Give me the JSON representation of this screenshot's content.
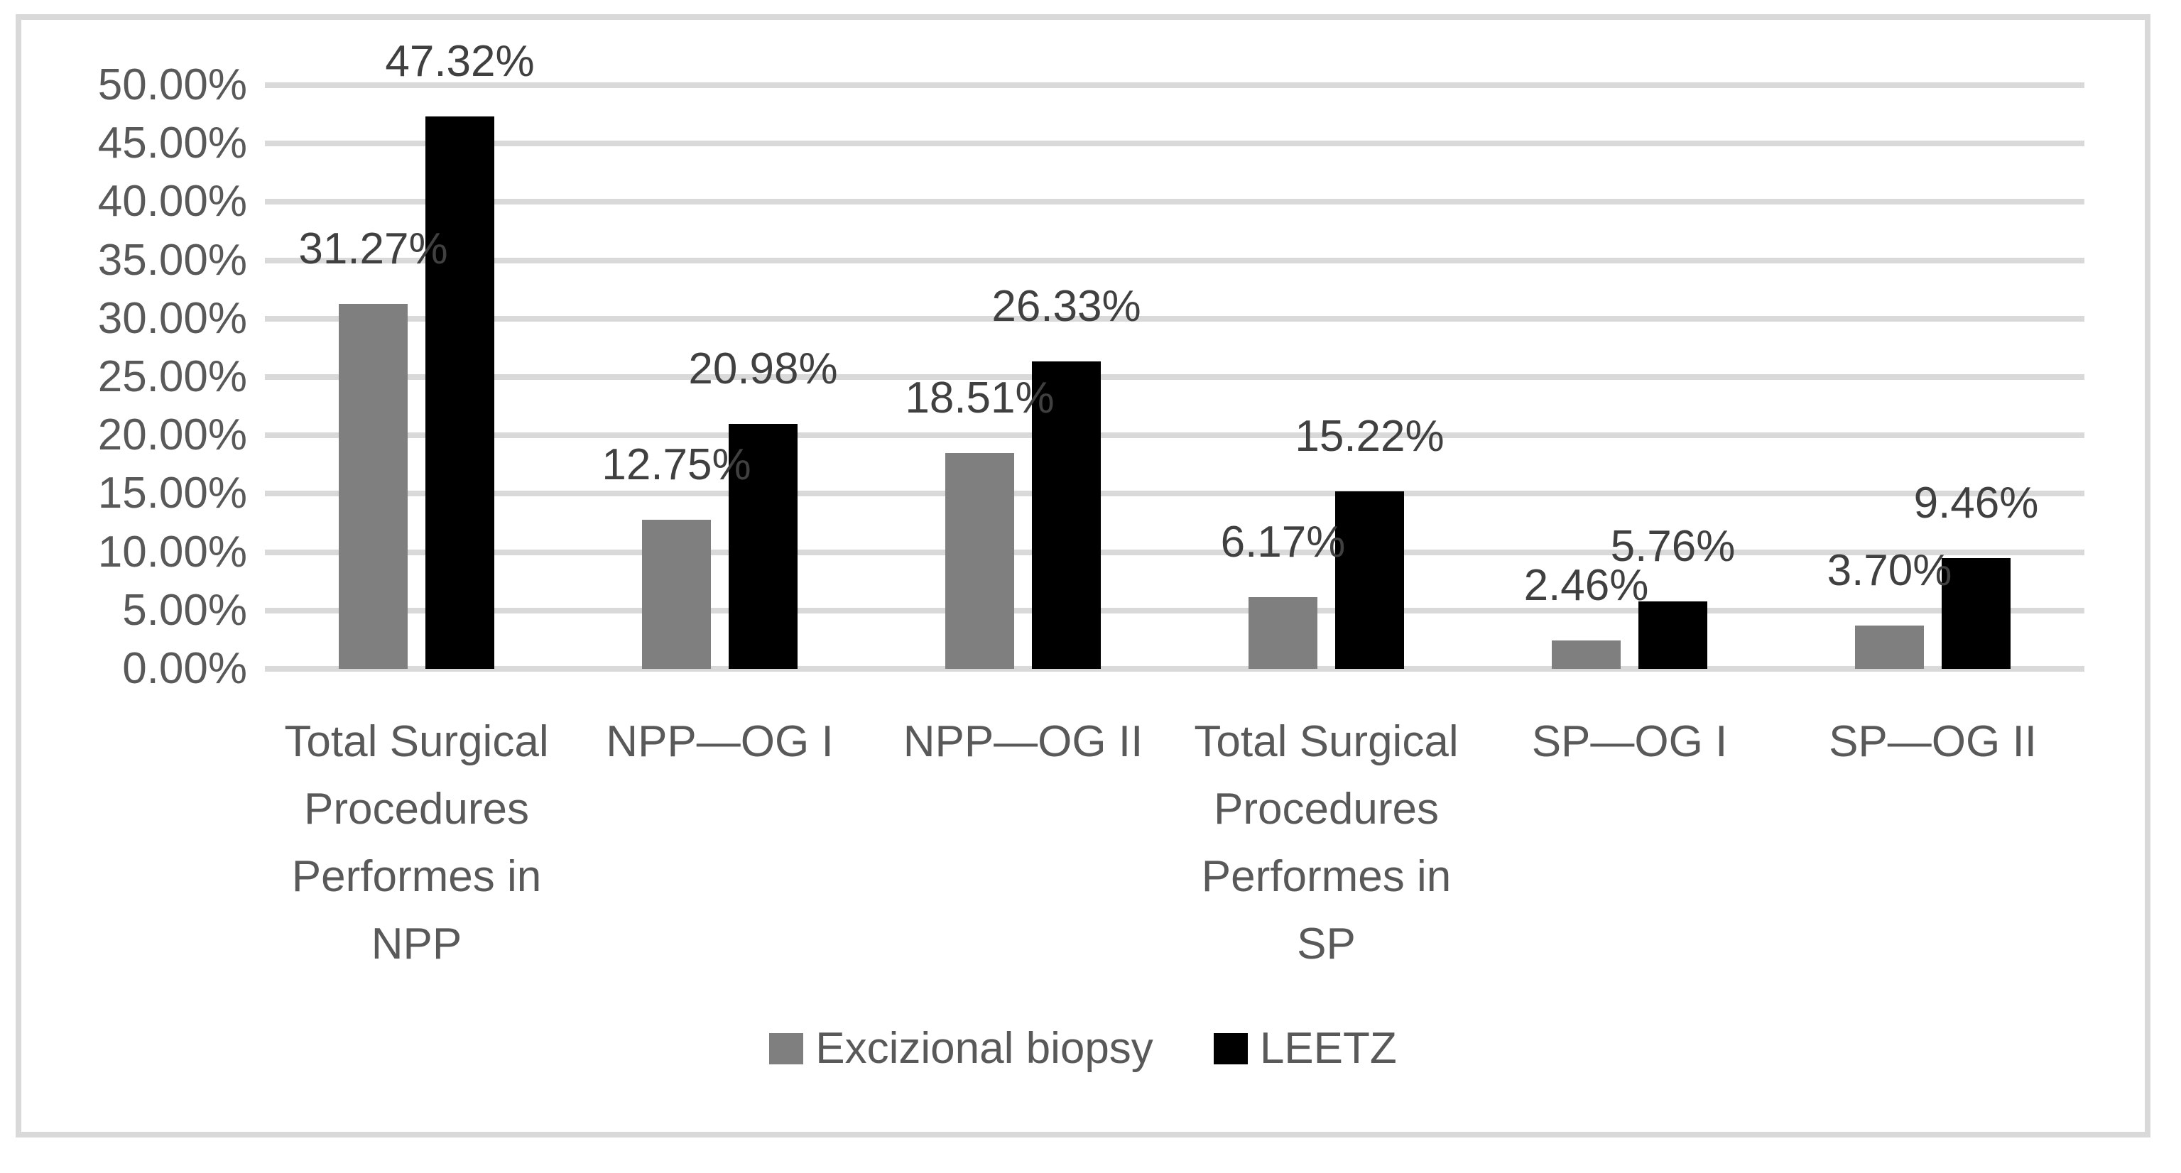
{
  "chart_data": {
    "type": "bar",
    "title": "",
    "xlabel": "",
    "ylabel": "",
    "categories": [
      "Total Surgical\nProcedures\nPerformes in\nNPP",
      "NPP—OG I",
      "NPP—OG II",
      "Total Surgical\nProcedures\nPerformes in\nSP",
      "SP—OG I",
      "SP—OG II"
    ],
    "series": [
      {
        "name": "Excizional biopsy",
        "color": "#7f7f7f",
        "values": [
          31.27,
          12.75,
          18.51,
          6.17,
          2.46,
          3.7
        ],
        "labels": [
          "31.27%",
          "12.75%",
          "18.51%",
          "6.17%",
          "2.46%",
          "3.70%"
        ]
      },
      {
        "name": "LEETZ",
        "color": "#000000",
        "values": [
          47.32,
          20.98,
          26.33,
          15.22,
          5.76,
          9.46
        ],
        "labels": [
          "47.32%",
          "20.98%",
          "26.33%",
          "15.22%",
          "5.76%",
          "9.46%"
        ]
      }
    ],
    "y_axis": {
      "tick_labels": [
        "0.00%",
        "5.00%",
        "10.00%",
        "15.00%",
        "20.00%",
        "25.00%",
        "30.00%",
        "35.00%",
        "40.00%",
        "45.00%",
        "50.00%"
      ],
      "tick_step": 5
    },
    "ylim": [
      0,
      50
    ],
    "grid": true,
    "legend_position": "bottom"
  },
  "colors": {
    "background": "#ffffff",
    "frame_border": "#d9d9d9",
    "gridline": "#d9d9d9",
    "axis_text": "#595959",
    "category_text": "#595959",
    "data_label_text": "#404040",
    "legend_text": "#595959"
  }
}
